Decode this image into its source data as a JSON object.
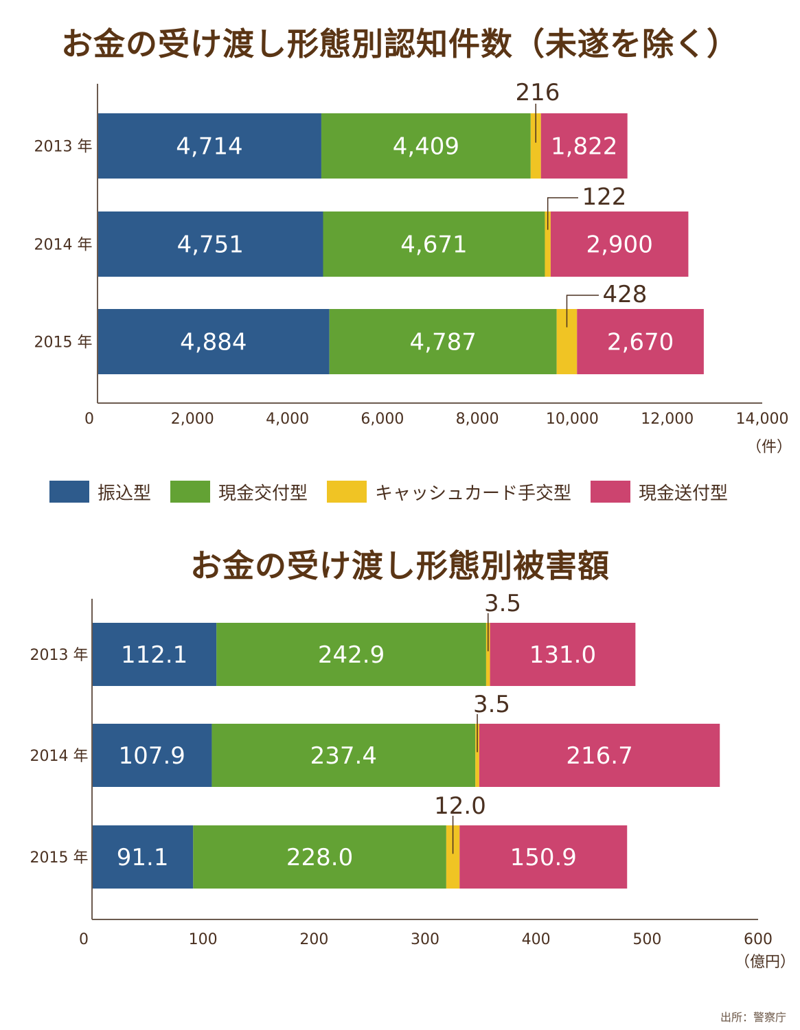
{
  "colors": {
    "furikomi": "#2e5b8c",
    "genkin_kofu": "#63a234",
    "cash_card": "#f0c424",
    "genkin_sofu": "#cc446f",
    "axis": "#6b5a4e",
    "text": "#4a3020",
    "title": "#5a3515"
  },
  "legend": [
    {
      "label": "振込型",
      "color": "#2e5b8c"
    },
    {
      "label": "現金交付型",
      "color": "#63a234"
    },
    {
      "label": "キャッシュカード手交型",
      "color": "#f0c424"
    },
    {
      "label": "現金送付型",
      "color": "#cc446f"
    }
  ],
  "source": "出所：警察庁",
  "chart_data": [
    {
      "type": "bar",
      "orientation": "horizontal",
      "stacked": true,
      "title": "お金の受け渡し形態別認知件数（未遂を除く）",
      "categories": [
        "2013 年",
        "2014 年",
        "2015 年"
      ],
      "series": [
        {
          "name": "振込型",
          "values": [
            4714,
            4751,
            4884
          ],
          "labels": [
            "4,714",
            "4,751",
            "4,884"
          ]
        },
        {
          "name": "現金交付型",
          "values": [
            4409,
            4671,
            4787
          ],
          "labels": [
            "4,409",
            "4,671",
            "4,787"
          ]
        },
        {
          "name": "キャッシュカード手交型",
          "values": [
            216,
            122,
            428
          ],
          "labels": [
            "216",
            "122",
            "428"
          ]
        },
        {
          "name": "現金送付型",
          "values": [
            1822,
            2900,
            2670
          ],
          "labels": [
            "1,822",
            "2,900",
            "2,670"
          ]
        }
      ],
      "xlim": [
        0,
        14000
      ],
      "xticks": [
        0,
        2000,
        4000,
        6000,
        8000,
        10000,
        12000,
        14000
      ],
      "xtick_labels": [
        "0",
        "2,000",
        "4,000",
        "6,000",
        "8,000",
        "10,000",
        "12,000",
        "14,000"
      ],
      "unit": "（件）",
      "grid": false
    },
    {
      "type": "bar",
      "orientation": "horizontal",
      "stacked": true,
      "title": "お金の受け渡し形態別被害額",
      "categories": [
        "2013 年",
        "2014 年",
        "2015 年"
      ],
      "series": [
        {
          "name": "振込型",
          "values": [
            112.1,
            107.9,
            91.1
          ],
          "labels": [
            "112.1",
            "107.9",
            "91.1"
          ]
        },
        {
          "name": "現金交付型",
          "values": [
            242.9,
            237.4,
            228.0
          ],
          "labels": [
            "242.9",
            "237.4",
            "228.0"
          ]
        },
        {
          "name": "キャッシュカード手交型",
          "values": [
            3.5,
            3.5,
            12.0
          ],
          "labels": [
            "3.5",
            "3.5",
            "12.0"
          ]
        },
        {
          "name": "現金送付型",
          "values": [
            131.0,
            216.7,
            150.9
          ],
          "labels": [
            "131.0",
            "216.7",
            "150.9"
          ]
        }
      ],
      "xlim": [
        0,
        600
      ],
      "xticks": [
        0,
        100,
        200,
        300,
        400,
        500,
        600
      ],
      "xtick_labels": [
        "0",
        "100",
        "200",
        "300",
        "400",
        "500",
        "600"
      ],
      "unit": "（億円）",
      "grid": false
    }
  ]
}
